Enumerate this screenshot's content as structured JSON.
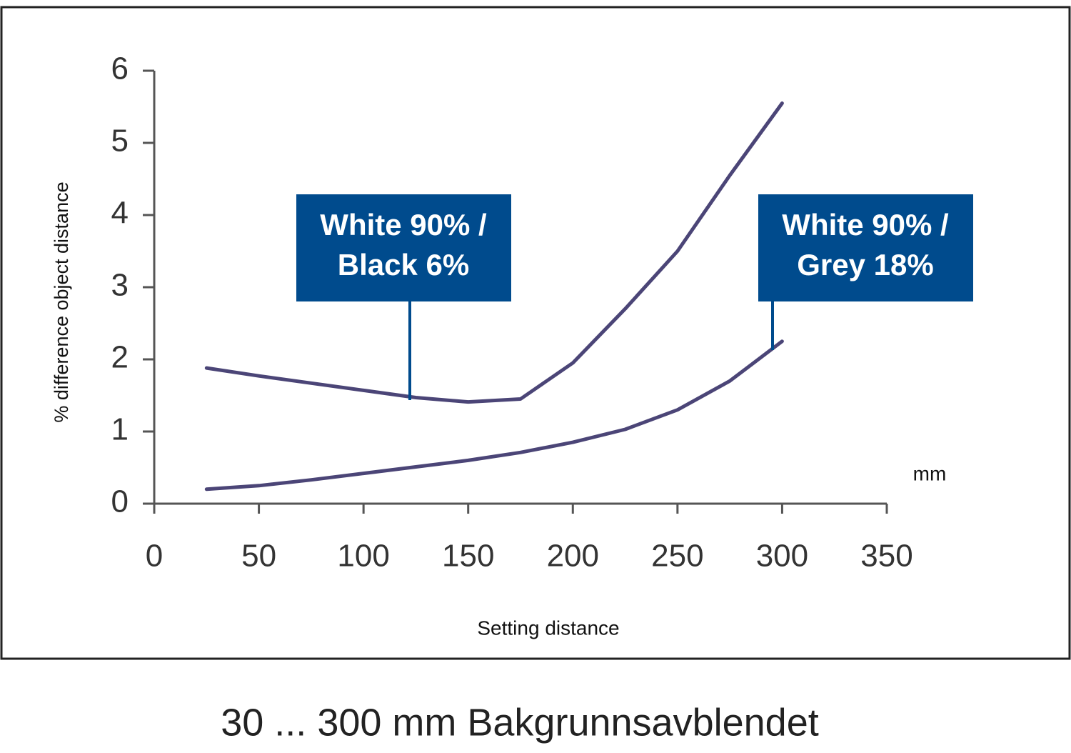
{
  "chart_data": {
    "type": "line",
    "caption": "30 ... 300 mm Bakgrunnsavblendet",
    "x_label": "Setting distance",
    "x_unit": "mm",
    "y_label": "% difference object distance",
    "xlim": [
      0,
      350
    ],
    "xticks": [
      0,
      50,
      100,
      150,
      200,
      250,
      300,
      350
    ],
    "ylim": [
      0,
      6
    ],
    "yticks": [
      0,
      1,
      2,
      3,
      4,
      5,
      6
    ],
    "x": [
      25,
      50,
      75,
      100,
      125,
      150,
      175,
      200,
      225,
      250,
      275,
      300
    ],
    "series": [
      {
        "label": [
          "White 90% /",
          "Black 6%"
        ],
        "color": "#4b4577",
        "values": [
          1.88,
          1.77,
          1.67,
          1.57,
          1.47,
          1.41,
          1.45,
          1.95,
          2.7,
          3.5,
          4.55,
          5.55
        ]
      },
      {
        "label": [
          "White 90% /",
          "Grey 18%"
        ],
        "color": "#4b4577",
        "values": [
          0.2,
          0.25,
          0.33,
          0.42,
          0.51,
          0.6,
          0.71,
          0.85,
          1.03,
          1.3,
          1.7,
          2.25
        ]
      }
    ],
    "callout_color": "#004b8d"
  }
}
